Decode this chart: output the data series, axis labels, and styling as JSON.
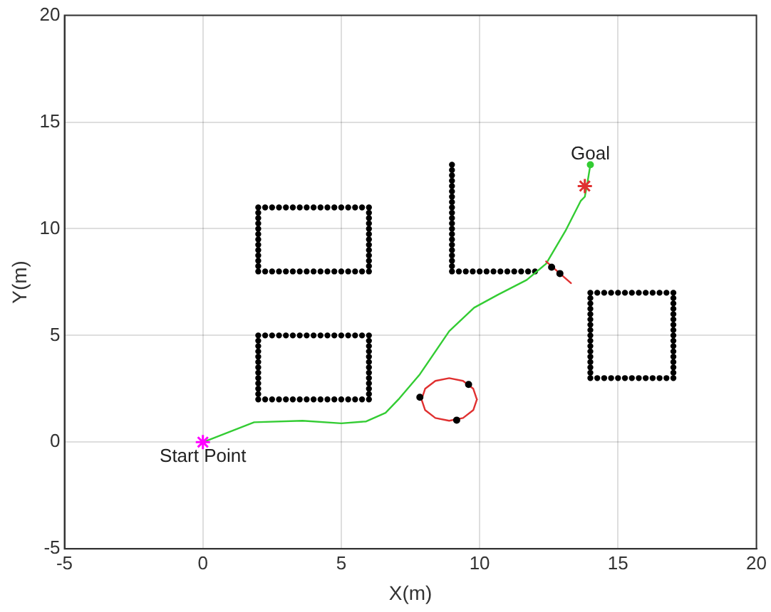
{
  "chart_data": {
    "type": "scatter",
    "xlabel": "X(m)",
    "ylabel": "Y(m)",
    "xlim": [
      -5,
      20
    ],
    "ylim": [
      -5,
      20
    ],
    "xticks": [
      -5,
      0,
      5,
      10,
      15,
      20
    ],
    "yticks": [
      -5,
      0,
      5,
      10,
      15,
      20
    ],
    "grid": true,
    "legend": false,
    "series": [
      {
        "type": "scatter",
        "color": "#000000",
        "marker": "circle",
        "x": [
          2,
          2.25,
          2.5,
          2.75,
          3,
          3.25,
          3.5,
          3.75,
          4,
          4.25,
          4.5,
          4.75,
          5,
          5.25,
          5.5,
          5.75,
          6,
          2,
          2.25,
          2.5,
          2.75,
          3,
          3.25,
          3.5,
          3.75,
          4,
          4.25,
          4.5,
          4.75,
          5,
          5.25,
          5.5,
          5.75,
          6,
          2,
          2,
          2,
          2,
          2,
          2,
          2,
          2,
          2,
          2,
          2,
          6,
          6,
          6,
          6,
          6,
          6,
          6,
          6,
          6,
          6,
          6
        ],
        "values": [
          8,
          8,
          8,
          8,
          8,
          8,
          8,
          8,
          8,
          8,
          8,
          8,
          8,
          8,
          8,
          8,
          8,
          11,
          11,
          11,
          11,
          11,
          11,
          11,
          11,
          11,
          11,
          11,
          11,
          11,
          11,
          11,
          11,
          11,
          8.25,
          8.5,
          8.75,
          9,
          9.25,
          9.5,
          9.75,
          10,
          10.25,
          10.5,
          10.75,
          8.25,
          8.5,
          8.75,
          9,
          9.25,
          9.5,
          9.75,
          10,
          10.25,
          10.5,
          10.75
        ]
      },
      {
        "type": "scatter",
        "color": "#000000",
        "marker": "circle",
        "x": [
          2,
          2.25,
          2.5,
          2.75,
          3,
          3.25,
          3.5,
          3.75,
          4,
          4.25,
          4.5,
          4.75,
          5,
          5.25,
          5.5,
          5.75,
          6,
          2,
          2.25,
          2.5,
          2.75,
          3,
          3.25,
          3.5,
          3.75,
          4,
          4.25,
          4.5,
          4.75,
          5,
          5.25,
          5.5,
          5.75,
          6,
          2,
          2,
          2,
          2,
          2,
          2,
          2,
          2,
          2,
          2,
          2,
          6,
          6,
          6,
          6,
          6,
          6,
          6,
          6,
          6,
          6,
          6
        ],
        "values": [
          2,
          2,
          2,
          2,
          2,
          2,
          2,
          2,
          2,
          2,
          2,
          2,
          2,
          2,
          2,
          2,
          2,
          5,
          5,
          5,
          5,
          5,
          5,
          5,
          5,
          5,
          5,
          5,
          5,
          5,
          5,
          5,
          5,
          5,
          2.25,
          2.5,
          2.75,
          3,
          3.25,
          3.5,
          3.75,
          4,
          4.25,
          4.5,
          4.75,
          2.25,
          2.5,
          2.75,
          3,
          3.25,
          3.5,
          3.75,
          4,
          4.25,
          4.5,
          4.75
        ]
      },
      {
        "type": "scatter",
        "color": "#000000",
        "marker": "circle",
        "x": [
          9,
          9,
          9,
          9,
          9,
          9,
          9,
          9,
          9,
          9,
          9,
          9,
          9,
          9,
          9,
          9,
          9,
          9,
          9,
          9,
          9,
          9.25,
          9.5,
          9.75,
          10,
          10.25,
          10.5,
          10.75,
          11,
          11.25,
          11.5,
          11.75,
          12
        ],
        "values": [
          13,
          12.75,
          12.5,
          12.25,
          12,
          11.75,
          11.5,
          11.25,
          11,
          10.75,
          10.5,
          10.25,
          10,
          9.75,
          9.5,
          9.25,
          9,
          8.75,
          8.5,
          8.25,
          8,
          8,
          8,
          8,
          8,
          8,
          8,
          8,
          8,
          8,
          8,
          8,
          8
        ]
      },
      {
        "type": "scatter",
        "color": "#000000",
        "marker": "circle",
        "x": [
          14,
          14.25,
          14.5,
          14.75,
          15,
          15.25,
          15.5,
          15.75,
          16,
          16.25,
          16.5,
          16.75,
          17,
          14,
          14.25,
          14.5,
          14.75,
          15,
          15.25,
          15.5,
          15.75,
          16,
          16.25,
          16.5,
          16.75,
          17,
          14,
          14,
          14,
          14,
          14,
          14,
          14,
          14,
          14,
          14,
          14,
          14,
          14,
          14,
          14,
          17,
          17,
          17,
          17,
          17,
          17,
          17,
          17,
          17,
          17,
          17,
          17,
          17,
          17,
          17
        ],
        "values": [
          3,
          3,
          3,
          3,
          3,
          3,
          3,
          3,
          3,
          3,
          3,
          3,
          3,
          7,
          7,
          7,
          7,
          7,
          7,
          7,
          7,
          7,
          7,
          7,
          7,
          7,
          3.25,
          3.5,
          3.75,
          4,
          4.25,
          4.5,
          4.75,
          5,
          5.25,
          5.5,
          5.75,
          6,
          6.25,
          6.5,
          6.75,
          3.25,
          3.5,
          3.75,
          4,
          4.25,
          4.5,
          4.75,
          5,
          5.25,
          5.5,
          5.75,
          6,
          6.25,
          6.5,
          6.75
        ]
      },
      {
        "type": "line",
        "color": "#33cc33",
        "line_style": "solid",
        "marker": "none",
        "x": [
          0,
          0.27,
          1.85,
          3.6,
          5.0,
          5.9,
          6.6,
          7.1,
          7.84,
          8.9,
          9.8,
          10.65,
          11.7,
          12.4,
          13.1,
          13.65,
          13.8,
          13.9,
          14
        ],
        "values": [
          0,
          0.13,
          0.93,
          1.0,
          0.88,
          0.97,
          1.37,
          2.05,
          3.18,
          5.2,
          6.3,
          6.9,
          7.6,
          8.36,
          9.9,
          11.3,
          11.5,
          12.2,
          13
        ]
      },
      {
        "type": "line",
        "color": "#e03030",
        "line_style": "solid",
        "marker": "none",
        "x": [
          7.9,
          8.03,
          8.4,
          8.9,
          9.4,
          9.77,
          9.9
        ],
        "values": [
          2,
          2.5,
          2.87,
          3,
          2.87,
          2.5,
          2
        ]
      },
      {
        "type": "line",
        "color": "#e03030",
        "line_style": "solid",
        "marker": "none",
        "x": [
          7.9,
          8.03,
          8.4,
          8.9,
          9.4,
          9.77,
          9.9
        ],
        "values": [
          2,
          1.5,
          1.13,
          1,
          1.13,
          1.5,
          2
        ]
      },
      {
        "type": "line",
        "color": "#e03030",
        "line_style": "solid",
        "marker": "none",
        "x": [
          12.4,
          13.3
        ],
        "values": [
          8.47,
          7.45
        ]
      },
      {
        "type": "scatter",
        "color": "#000000",
        "marker": "circle",
        "x": [
          7.84,
          9.6,
          9.17,
          12.6,
          12.9
        ],
        "values": [
          2.1,
          2.7,
          1.03,
          8.2,
          7.9
        ]
      },
      {
        "type": "scatter",
        "color": "#33cc33",
        "marker": "circle",
        "x": [
          14
        ],
        "values": [
          13
        ]
      },
      {
        "type": "scatter",
        "color": "#e03030",
        "marker": "cross",
        "x": [
          13.8
        ],
        "values": [
          12
        ]
      },
      {
        "type": "scatter",
        "color": "#ff00ff",
        "marker": "cross",
        "x": [
          0
        ],
        "values": [
          0
        ]
      }
    ],
    "annotations": [
      {
        "text": "Start Point",
        "x": 0,
        "y": 0
      },
      {
        "text": "Goal",
        "x": 14,
        "y": 13
      }
    ]
  }
}
